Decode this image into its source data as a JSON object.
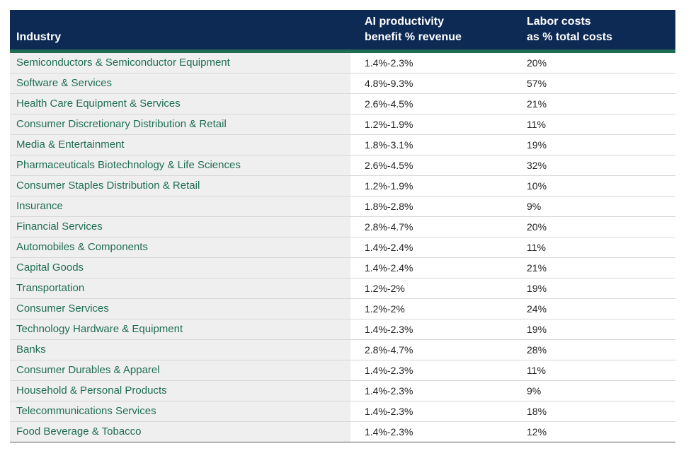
{
  "table": {
    "headers": {
      "industry": "Industry",
      "ai_line1": "AI productivity",
      "ai_line2": "benefit % revenue",
      "labor_line1": "Labor costs",
      "labor_line2": "as % total costs"
    },
    "rows": [
      {
        "industry": "Semiconductors & Semiconductor Equipment",
        "ai_benefit": "1.4%-2.3%",
        "labor_costs": "20%"
      },
      {
        "industry": "Software & Services",
        "ai_benefit": "4.8%-9.3%",
        "labor_costs": "57%"
      },
      {
        "industry": "Health Care Equipment & Services",
        "ai_benefit": "2.6%-4.5%",
        "labor_costs": "21%"
      },
      {
        "industry": "Consumer Discretionary Distribution & Retail",
        "ai_benefit": "1.2%-1.9%",
        "labor_costs": "11%"
      },
      {
        "industry": "Media & Entertainment",
        "ai_benefit": "1.8%-3.1%",
        "labor_costs": "19%"
      },
      {
        "industry": "Pharmaceuticals Biotechnology & Life Sciences",
        "ai_benefit": "2.6%-4.5%",
        "labor_costs": "32%"
      },
      {
        "industry": "Consumer Staples Distribution & Retail",
        "ai_benefit": "1.2%-1.9%",
        "labor_costs": "10%"
      },
      {
        "industry": "Insurance",
        "ai_benefit": "1.8%-2.8%",
        "labor_costs": "9%"
      },
      {
        "industry": "Financial Services",
        "ai_benefit": "2.8%-4.7%",
        "labor_costs": "20%"
      },
      {
        "industry": "Automobiles & Components",
        "ai_benefit": "1.4%-2.4%",
        "labor_costs": "11%"
      },
      {
        "industry": "Capital Goods",
        "ai_benefit": "1.4%-2.4%",
        "labor_costs": "21%"
      },
      {
        "industry": "Transportation",
        "ai_benefit": "1.2%-2%",
        "labor_costs": "19%"
      },
      {
        "industry": "Consumer Services",
        "ai_benefit": "1.2%-2%",
        "labor_costs": "24%"
      },
      {
        "industry": "Technology Hardware & Equipment",
        "ai_benefit": "1.4%-2.3%",
        "labor_costs": "19%"
      },
      {
        "industry": "Banks",
        "ai_benefit": "2.8%-4.7%",
        "labor_costs": "28%"
      },
      {
        "industry": "Consumer Durables & Apparel",
        "ai_benefit": "1.4%-2.3%",
        "labor_costs": "11%"
      },
      {
        "industry": "Household & Personal Products",
        "ai_benefit": "1.4%-2.3%",
        "labor_costs": "9%"
      },
      {
        "industry": "Telecommunications Services",
        "ai_benefit": "1.4%-2.3%",
        "labor_costs": "18%"
      },
      {
        "industry": "Food Beverage & Tobacco",
        "ai_benefit": "1.4%-2.3%",
        "labor_costs": "12%"
      }
    ]
  },
  "colors": {
    "header_bg": "#0d2a55",
    "accent_green": "#1f6e54",
    "industry_text": "#1f6e54",
    "industry_col_bg": "#efefef"
  }
}
